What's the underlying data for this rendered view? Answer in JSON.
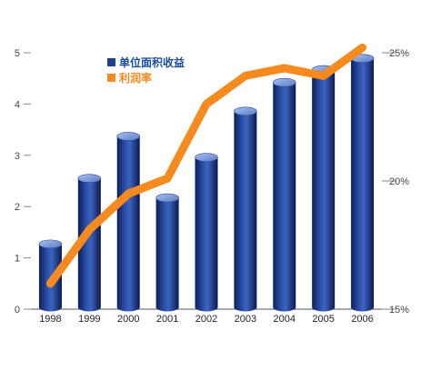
{
  "chart_data": {
    "type": "bar",
    "categories": [
      "1998",
      "1999",
      "2000",
      "2001",
      "2002",
      "2003",
      "2004",
      "2005",
      "2006"
    ],
    "series": [
      {
        "name": "单位面积收益",
        "type": "bar",
        "axis": "left",
        "values": [
          1.27,
          2.55,
          3.37,
          2.17,
          2.96,
          3.86,
          4.42,
          4.67,
          4.89
        ]
      },
      {
        "name": "利润率",
        "type": "line",
        "axis": "right",
        "values": [
          16.0,
          18.1,
          19.5,
          20.1,
          23.0,
          24.1,
          24.4,
          24.1,
          25.2
        ]
      }
    ],
    "yaxis_left": {
      "ylim": [
        0,
        5
      ],
      "ticks": [
        "0",
        "1",
        "2",
        "3",
        "4",
        "5"
      ]
    },
    "yaxis_right": {
      "ylim": [
        15,
        25
      ],
      "ticks": [
        "15%",
        "20%",
        "25%"
      ]
    },
    "legend": {
      "placement": "top-left",
      "entries": [
        "单位面积收益",
        "利润率"
      ]
    },
    "grid": false,
    "colors": {
      "bar": "#1f3f8f",
      "bar_light": "#6f8fd0",
      "bar_dark": "#0d1f5c",
      "line": "#f58a1f",
      "legend_text": "#1a4fa0",
      "axis": "#444444"
    }
  }
}
